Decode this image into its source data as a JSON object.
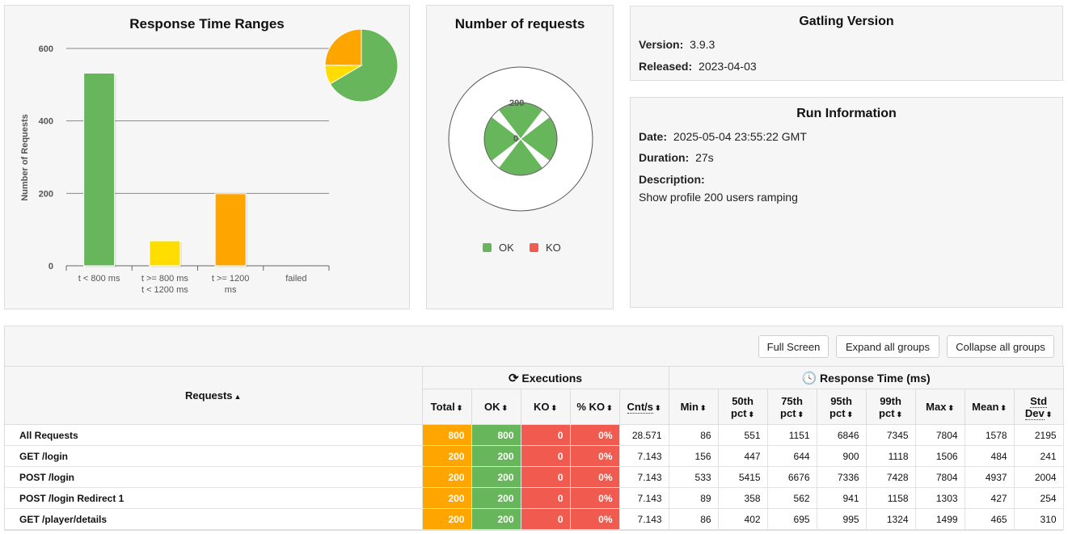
{
  "colors": {
    "ok": "#68b65c",
    "ko": "#f15b4f",
    "warn": "#ffa500",
    "yellow": "#ffdd00",
    "panel_bg": "#f6f6f6"
  },
  "response_time_ranges": {
    "title": "Response Time Ranges",
    "chart_data": {
      "type": "bar",
      "title": "Response Time Ranges",
      "ylabel": "Number of Requests",
      "ylim": [
        0,
        600
      ],
      "yticks": [
        "0",
        "200",
        "400",
        "600"
      ],
      "categories": [
        [
          "t < 800 ms"
        ],
        [
          "t >= 800 ms",
          "t < 1200 ms"
        ],
        [
          "t >= 1200",
          "ms"
        ],
        [
          "failed"
        ]
      ],
      "values": [
        532,
        69,
        199,
        0
      ],
      "bar_colors": [
        "#68b65c",
        "#ffdd00",
        "#ffa500",
        "#f15b4f"
      ]
    },
    "pie_data": {
      "type": "pie",
      "values": [
        532,
        69,
        199,
        0
      ],
      "colors": [
        "#68b65c",
        "#ffdd00",
        "#ffa500",
        "#f15b4f"
      ]
    }
  },
  "number_of_requests": {
    "title": "Number of requests",
    "chart_data": {
      "type": "pie",
      "series": [
        {
          "name": "OK",
          "values": [
            200,
            200,
            200,
            200
          ]
        },
        {
          "name": "KO",
          "values": [
            0,
            0,
            0,
            0
          ]
        }
      ],
      "scale_labels": [
        "200",
        "0"
      ],
      "legend": [
        "OK",
        "KO"
      ]
    }
  },
  "gatling_version": {
    "title": "Gatling Version",
    "version_label": "Version:",
    "version": "3.9.3",
    "released_label": "Released:",
    "released": "2023-04-03"
  },
  "run_information": {
    "title": "Run Information",
    "date_label": "Date:",
    "date": "2025-05-04 23:55:22 GMT",
    "duration_label": "Duration:",
    "duration": "27s",
    "description_label": "Description:",
    "description": "Show profile 200 users ramping"
  },
  "toolbar": {
    "full_screen": "Full Screen",
    "expand_all": "Expand all groups",
    "collapse_all": "Collapse all groups"
  },
  "table": {
    "requests_header": "Requests",
    "executions_header": "Executions",
    "response_time_header": "Response Time (ms)",
    "columns": {
      "total": "Total",
      "ok": "OK",
      "ko": "KO",
      "pct_ko": "% KO",
      "cnt_s": "Cnt/s",
      "min": "Min",
      "p50a": "50th",
      "p50b": "pct",
      "p75a": "75th",
      "p75b": "pct",
      "p95a": "95th",
      "p95b": "pct",
      "p99a": "99th",
      "p99b": "pct",
      "max": "Max",
      "mean": "Mean",
      "stda": "Std",
      "stdb": "Dev"
    },
    "rows": [
      {
        "name": "All Requests",
        "total": "800",
        "ok": "800",
        "ko": "0",
        "pct_ko": "0%",
        "cnt_s": "28.571",
        "min": "86",
        "p50": "551",
        "p75": "1151",
        "p95": "6846",
        "p99": "7345",
        "max": "7804",
        "mean": "1578",
        "std": "2195"
      },
      {
        "name": "GET /login",
        "total": "200",
        "ok": "200",
        "ko": "0",
        "pct_ko": "0%",
        "cnt_s": "7.143",
        "min": "156",
        "p50": "447",
        "p75": "644",
        "p95": "900",
        "p99": "1118",
        "max": "1506",
        "mean": "484",
        "std": "241"
      },
      {
        "name": "POST /login",
        "total": "200",
        "ok": "200",
        "ko": "0",
        "pct_ko": "0%",
        "cnt_s": "7.143",
        "min": "533",
        "p50": "5415",
        "p75": "6676",
        "p95": "7336",
        "p99": "7428",
        "max": "7804",
        "mean": "4937",
        "std": "2004"
      },
      {
        "name": "POST /login Redirect 1",
        "total": "200",
        "ok": "200",
        "ko": "0",
        "pct_ko": "0%",
        "cnt_s": "7.143",
        "min": "89",
        "p50": "358",
        "p75": "562",
        "p95": "941",
        "p99": "1158",
        "max": "1303",
        "mean": "427",
        "std": "254"
      },
      {
        "name": "GET /player/details",
        "total": "200",
        "ok": "200",
        "ko": "0",
        "pct_ko": "0%",
        "cnt_s": "7.143",
        "min": "86",
        "p50": "402",
        "p75": "695",
        "p95": "995",
        "p99": "1324",
        "max": "1499",
        "mean": "465",
        "std": "310"
      }
    ]
  }
}
